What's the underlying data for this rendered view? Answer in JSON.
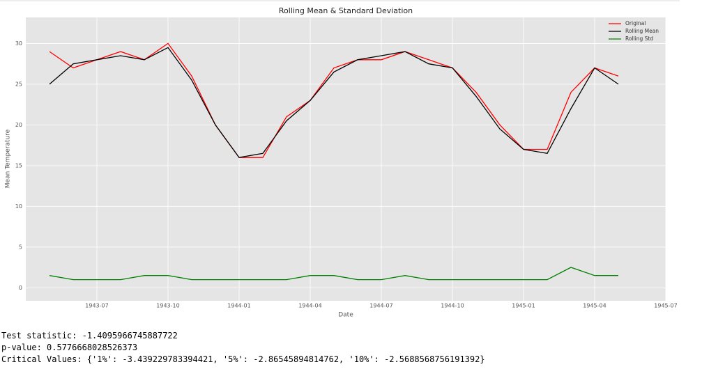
{
  "chart_data": {
    "type": "line",
    "title": "Rolling Mean & Standard Deviation",
    "x_label": "Date",
    "y_label": "Mean Temperature",
    "x": [
      "1943-05",
      "1943-06",
      "1943-07",
      "1943-08",
      "1943-09",
      "1943-10",
      "1943-11",
      "1943-12",
      "1944-01",
      "1944-02",
      "1944-03",
      "1944-04",
      "1944-05",
      "1944-06",
      "1944-07",
      "1944-08",
      "1944-09",
      "1944-10",
      "1944-11",
      "1944-12",
      "1945-01",
      "1945-02",
      "1945-03",
      "1945-04",
      "1945-05"
    ],
    "series": [
      {
        "name": "Original",
        "color": "#ff0000",
        "values": [
          29,
          27,
          28,
          29,
          28,
          30,
          26,
          20,
          16,
          16,
          21,
          23,
          27,
          28,
          28,
          29,
          28,
          27,
          24,
          20,
          17,
          17,
          24,
          27,
          26
        ]
      },
      {
        "name": "Rolling Mean",
        "color": "#000000",
        "values": [
          25,
          27.5,
          28,
          28.5,
          28,
          29.5,
          25.5,
          20,
          16,
          16.5,
          20.5,
          23,
          26.5,
          28,
          28.5,
          29,
          27.5,
          27,
          23.5,
          19.5,
          17,
          16.5,
          22,
          27,
          25
        ]
      },
      {
        "name": "Rolling Std",
        "color": "#008000",
        "values": [
          1.5,
          1,
          1,
          1,
          1.5,
          1.5,
          1,
          1,
          1,
          1,
          1,
          1.5,
          1.5,
          1,
          1,
          1.5,
          1,
          1,
          1,
          1,
          1,
          1,
          2.5,
          1.5,
          1.5
        ]
      }
    ],
    "xlim": [
      "1943-04",
      "1945-07"
    ],
    "xticks": [
      "1943-07",
      "1943-10",
      "1944-01",
      "1944-04",
      "1944-07",
      "1944-10",
      "1945-01",
      "1945-04",
      "1945-07"
    ],
    "ylim": [
      -1.6,
      33.2
    ],
    "yticks": [
      0,
      5,
      10,
      15,
      20,
      25,
      30
    ],
    "grid": true,
    "legend": "upper right"
  },
  "output_lines": [
    "Test statistic:  -1.4095966745887722",
    "p-value:  0.5776668028526373",
    "Critical Values: {'1%': -3.439229783394421, '5%': -2.86545894814762, '10%': -2.5688568756191392}"
  ]
}
